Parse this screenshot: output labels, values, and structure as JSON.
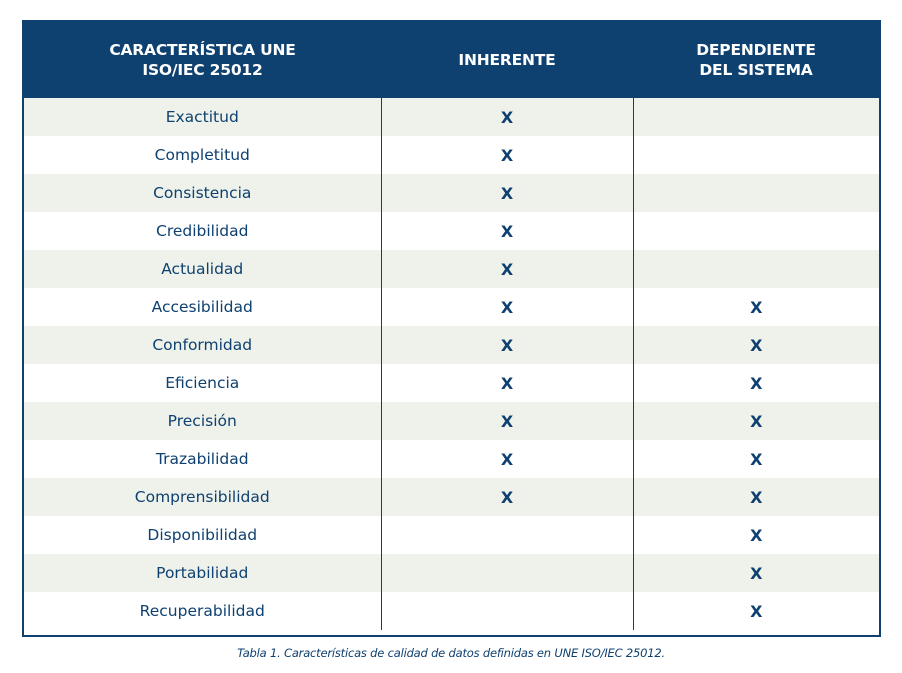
{
  "table": {
    "headers": [
      "CARACTERÍSTICA UNE\nISO/IEC 25012",
      "INHERENTE",
      "DEPENDIENTE\nDEL SISTEMA"
    ],
    "rows": [
      {
        "name": "Exactitud",
        "inherente": "X",
        "dependiente": ""
      },
      {
        "name": "Completitud",
        "inherente": "X",
        "dependiente": ""
      },
      {
        "name": "Consistencia",
        "inherente": "X",
        "dependiente": ""
      },
      {
        "name": "Credibilidad",
        "inherente": "X",
        "dependiente": ""
      },
      {
        "name": "Actualidad",
        "inherente": "X",
        "dependiente": ""
      },
      {
        "name": "Accesibilidad",
        "inherente": "X",
        "dependiente": "X"
      },
      {
        "name": "Conformidad",
        "inherente": "X",
        "dependiente": "X"
      },
      {
        "name": "Eficiencia",
        "inherente": "X",
        "dependiente": "X"
      },
      {
        "name": "Precisión",
        "inherente": "X",
        "dependiente": "X"
      },
      {
        "name": "Trazabilidad",
        "inherente": "X",
        "dependiente": "X"
      },
      {
        "name": "Comprensibilidad",
        "inherente": "X",
        "dependiente": "X"
      },
      {
        "name": "Disponibilidad",
        "inherente": "",
        "dependiente": "X"
      },
      {
        "name": "Portabilidad",
        "inherente": "",
        "dependiente": "X"
      },
      {
        "name": "Recuperabilidad",
        "inherente": "",
        "dependiente": "X"
      }
    ]
  },
  "caption": "Tabla 1. Características de calidad de datos definidas en UNE ISO/IEC 25012.",
  "colors": {
    "header_bg": "#0e4070",
    "header_text": "#ffffff",
    "row_alt_bg": "#eef2ea",
    "text": "#0e4070"
  }
}
